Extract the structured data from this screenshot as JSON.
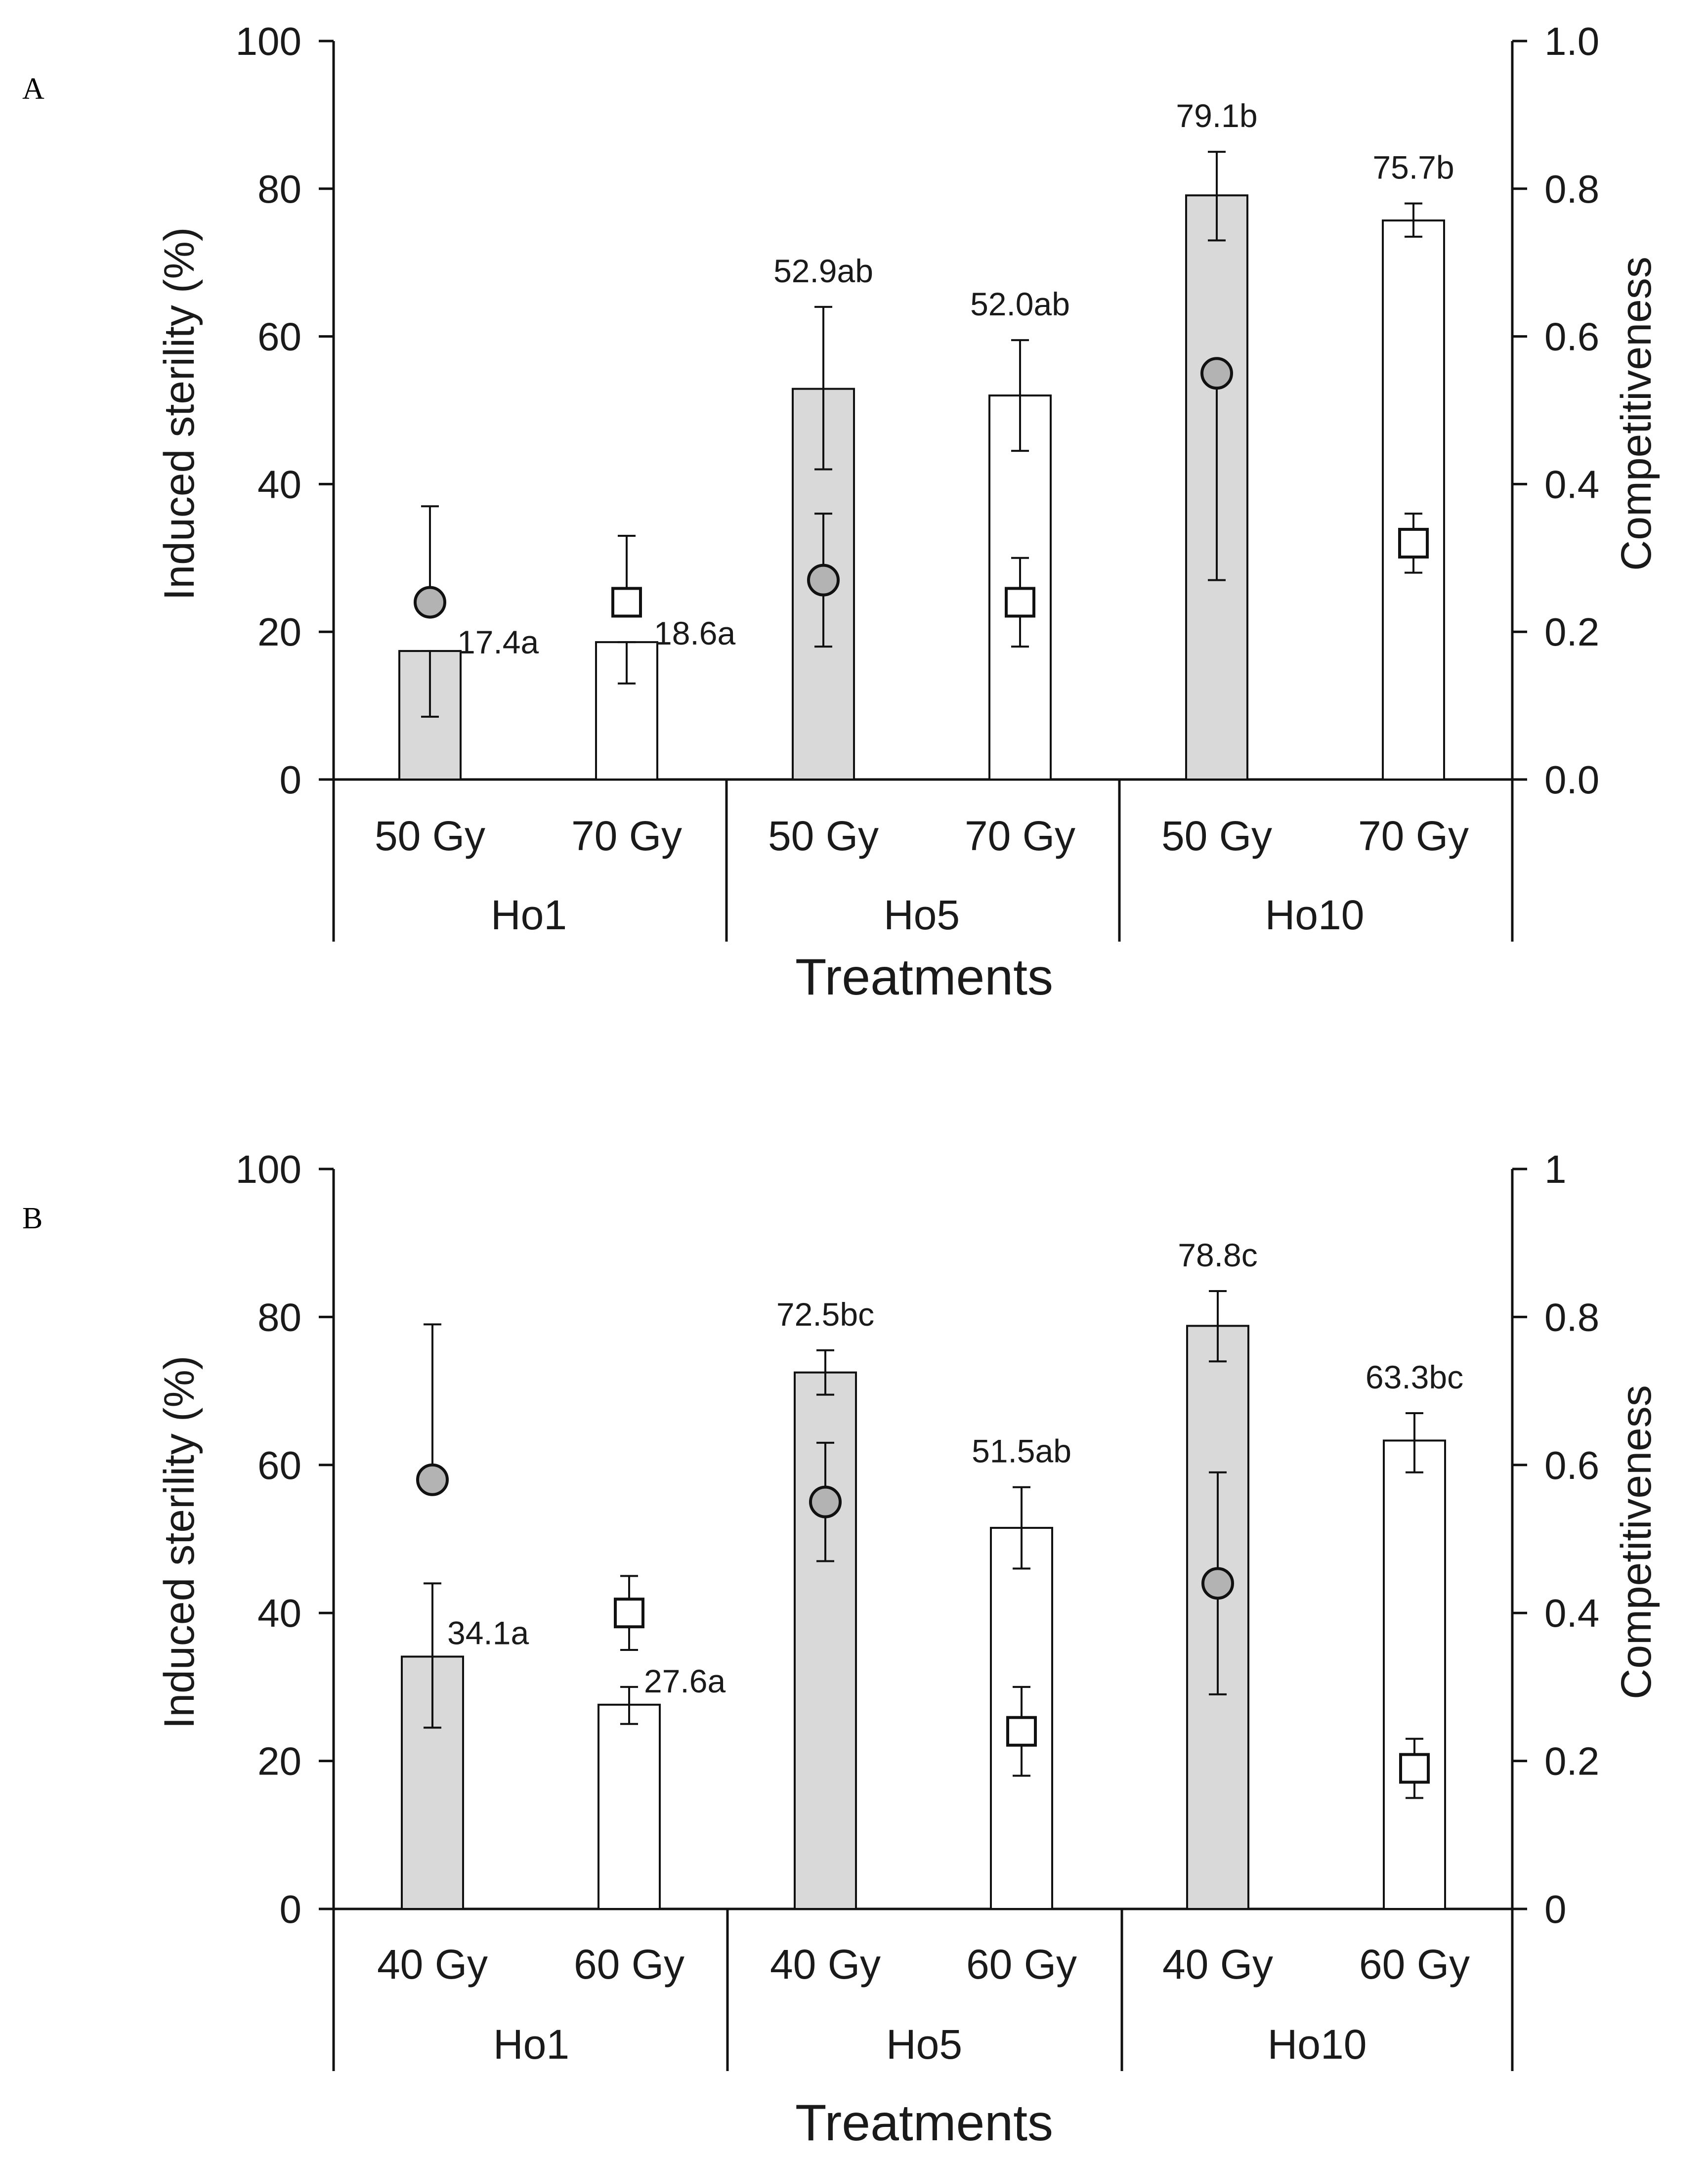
{
  "chart_data": [
    {
      "panel": "A",
      "type": "bar",
      "xlabel": "Treatments",
      "ylabel": "Induced sterility (%)",
      "y2label": "Competitiveness",
      "ylim": [
        0,
        100
      ],
      "y2lim": [
        0,
        1
      ],
      "yticks": [
        "0",
        "20",
        "40",
        "60",
        "80",
        "100"
      ],
      "y2ticks": [
        "0.0",
        "0.2",
        "0.4",
        "0.6",
        "0.8",
        "1.0"
      ],
      "bars": [
        {
          "group": "Ho1",
          "dose": "50 Gy",
          "fill": "gray",
          "value": 17.4,
          "lower": 8.5,
          "upper": 17.4,
          "label": "17.4a",
          "comp": 0.24,
          "comp_lower": 0.24,
          "comp_upper": 0.37,
          "marker": "circle"
        },
        {
          "group": "Ho1",
          "dose": "70 Gy",
          "fill": "white",
          "value": 18.6,
          "lower": 13.0,
          "upper": 18.6,
          "label": "18.6a",
          "comp": 0.24,
          "comp_lower": 0.24,
          "comp_upper": 0.33,
          "marker": "square"
        },
        {
          "group": "Ho5",
          "dose": "50 Gy",
          "fill": "gray",
          "value": 52.9,
          "lower": 42.0,
          "upper": 64.0,
          "label": "52.9ab",
          "comp": 0.27,
          "comp_lower": 0.18,
          "comp_upper": 0.36,
          "marker": "circle"
        },
        {
          "group": "Ho5",
          "dose": "70 Gy",
          "fill": "white",
          "value": 52.0,
          "lower": 44.5,
          "upper": 59.5,
          "label": "52.0ab",
          "comp": 0.24,
          "comp_lower": 0.18,
          "comp_upper": 0.3,
          "marker": "square"
        },
        {
          "group": "Ho10",
          "dose": "50 Gy",
          "fill": "gray",
          "value": 79.1,
          "lower": 73.0,
          "upper": 85.0,
          "label": "79.1b",
          "comp": 0.55,
          "comp_lower": 0.27,
          "comp_upper": 0.55,
          "marker": "circle"
        },
        {
          "group": "Ho10",
          "dose": "70 Gy",
          "fill": "white",
          "value": 75.7,
          "lower": 73.5,
          "upper": 78.0,
          "label": "75.7b",
          "comp": 0.32,
          "comp_lower": 0.28,
          "comp_upper": 0.36,
          "marker": "square"
        }
      ],
      "groups": [
        "Ho1",
        "Ho5",
        "Ho10"
      ]
    },
    {
      "panel": "B",
      "type": "bar",
      "xlabel": "Treatments",
      "ylabel": "Induced sterility (%)",
      "y2label": "Competitiveness",
      "ylim": [
        0,
        100
      ],
      "y2lim": [
        0,
        1
      ],
      "yticks": [
        "0",
        "20",
        "40",
        "60",
        "80",
        "100"
      ],
      "y2ticks": [
        "0",
        "0.2",
        "0.4",
        "0.6",
        "0.8",
        "1"
      ],
      "bars": [
        {
          "group": "Ho1",
          "dose": "40 Gy",
          "fill": "gray",
          "value": 34.1,
          "lower": 24.5,
          "upper": 44.0,
          "label": "34.1a",
          "comp": 0.58,
          "comp_lower": 0.58,
          "comp_upper": 0.79,
          "marker": "circle"
        },
        {
          "group": "Ho1",
          "dose": "60 Gy",
          "fill": "white",
          "value": 27.6,
          "lower": 25.0,
          "upper": 30.0,
          "label": "27.6a",
          "comp": 0.4,
          "comp_lower": 0.35,
          "comp_upper": 0.45,
          "marker": "square"
        },
        {
          "group": "Ho5",
          "dose": "40 Gy",
          "fill": "gray",
          "value": 72.5,
          "lower": 69.5,
          "upper": 75.5,
          "label": "72.5bc",
          "comp": 0.55,
          "comp_lower": 0.47,
          "comp_upper": 0.63,
          "marker": "circle"
        },
        {
          "group": "Ho5",
          "dose": "60 Gy",
          "fill": "white",
          "value": 51.5,
          "lower": 46.0,
          "upper": 57.0,
          "label": "51.5ab",
          "comp": 0.24,
          "comp_lower": 0.18,
          "comp_upper": 0.3,
          "marker": "square"
        },
        {
          "group": "Ho10",
          "dose": "40 Gy",
          "fill": "gray",
          "value": 78.8,
          "lower": 74.0,
          "upper": 83.5,
          "label": "78.8c",
          "comp": 0.44,
          "comp_lower": 0.29,
          "comp_upper": 0.59,
          "marker": "circle"
        },
        {
          "group": "Ho10",
          "dose": "60 Gy",
          "fill": "white",
          "value": 63.3,
          "lower": 59.0,
          "upper": 67.0,
          "label": "63.3bc",
          "comp": 0.19,
          "comp_lower": 0.15,
          "comp_upper": 0.23,
          "marker": "square"
        }
      ],
      "groups": [
        "Ho1",
        "Ho5",
        "Ho10"
      ]
    }
  ]
}
